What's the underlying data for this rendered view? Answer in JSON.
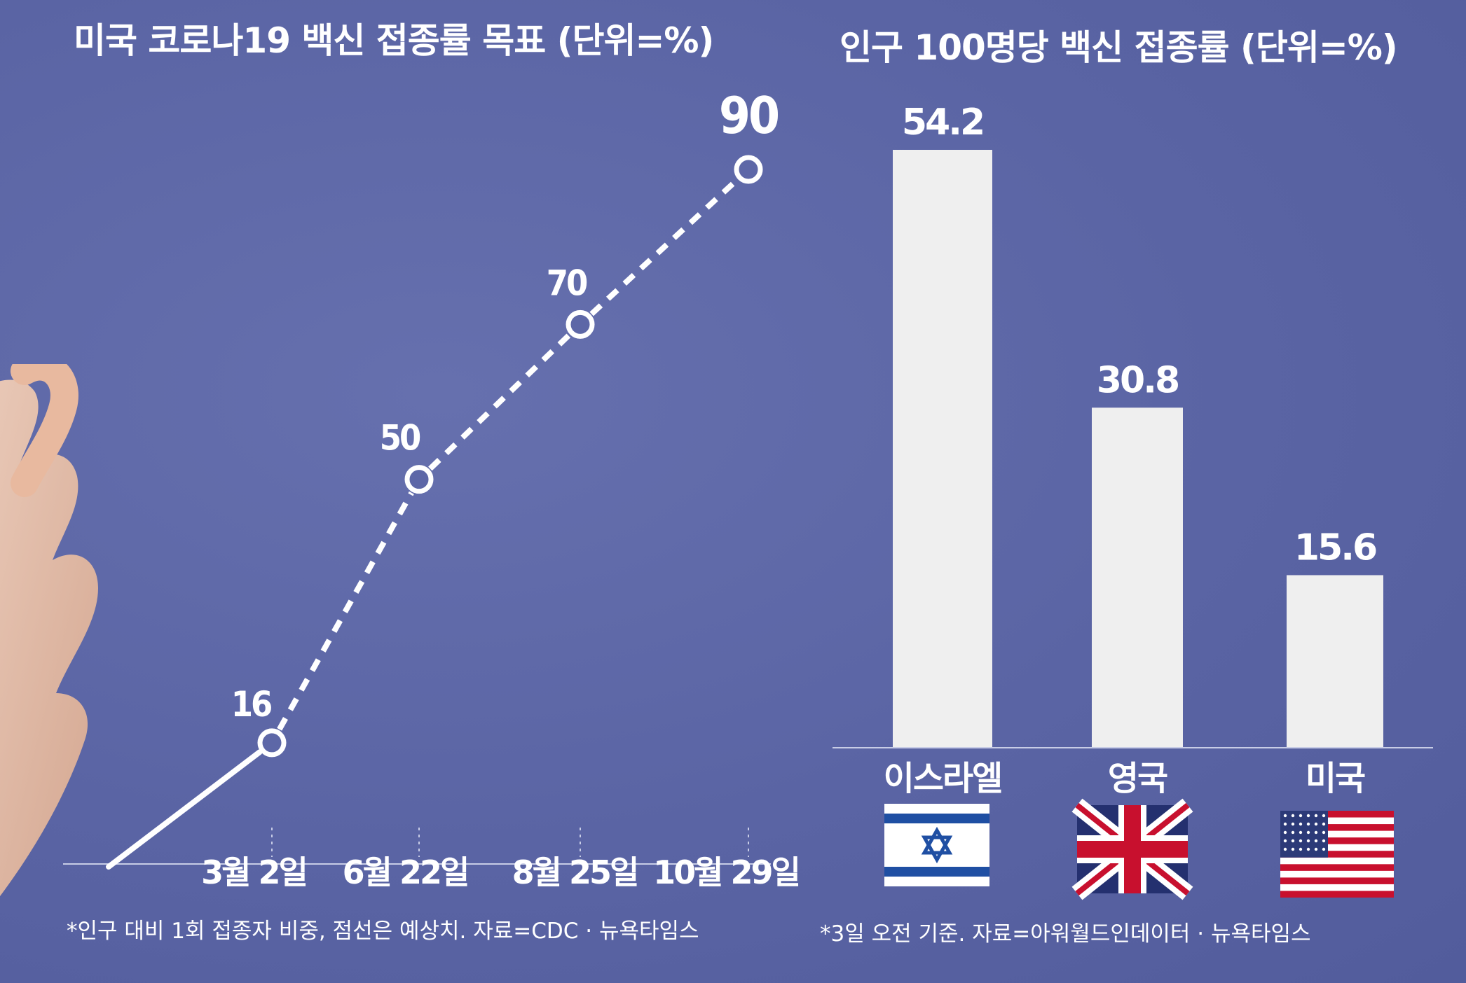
{
  "chart_data": [
    {
      "type": "line",
      "title": "미국 코로나19 백신 접종률 목표 (단위=%)",
      "x": [
        "",
        "3월 2일",
        "6월 22일",
        "8월 25일",
        "10월 29일"
      ],
      "values": [
        0,
        16,
        50,
        70,
        90
      ],
      "point_labels": [
        "",
        "16",
        "50",
        "70",
        "90"
      ],
      "ylim": [
        0,
        100
      ],
      "solid_until_index": 1,
      "footnote": "*인구 대비 1회 접종자 비중, 점선은 예상치. 자료=CDC · 뉴욕타임스"
    },
    {
      "type": "bar",
      "title": "인구 100명당 백신 접종률 (단위=%)",
      "categories": [
        "이스라엘",
        "영국",
        "미국"
      ],
      "values": [
        54.2,
        30.8,
        15.6
      ],
      "value_labels": [
        "54.2",
        "30.8",
        "15.6"
      ],
      "flags": [
        "israel-flag-icon",
        "uk-flag-icon",
        "us-flag-icon"
      ],
      "ylim": [
        0,
        60
      ],
      "footnote": "*3일 오전 기준. 자료=아워월드인데이터 · 뉴욕타임스"
    }
  ],
  "colors": {
    "background": "#5d67a7",
    "mark": "#ffffff",
    "bar": "#efefef",
    "axis": "#c8cde6"
  }
}
